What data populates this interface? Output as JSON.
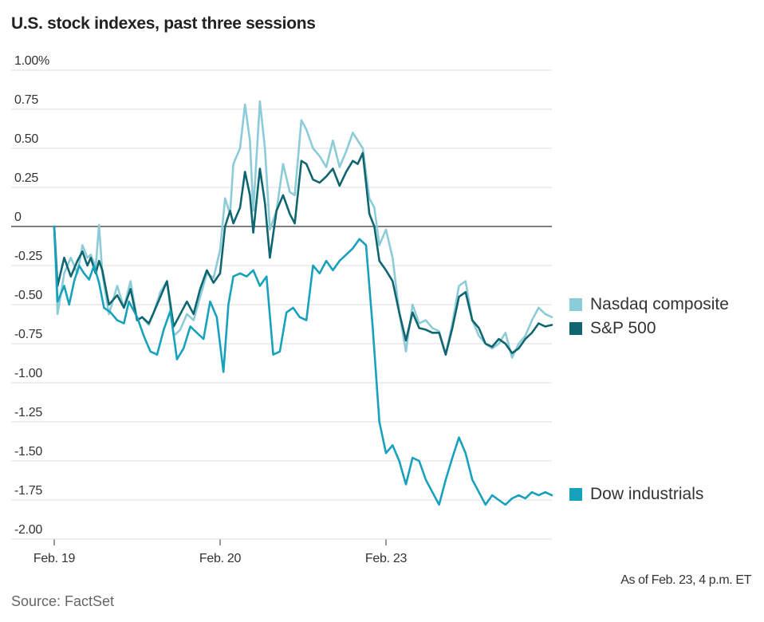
{
  "chart_data": {
    "type": "line",
    "title": "U.S. stock indexes, past three sessions",
    "note": "As of Feb. 23, 4 p.m. ET",
    "source": "Source: FactSet",
    "ylim": [
      -2.0,
      1.0
    ],
    "y_ticks": [
      {
        "value": 1.0,
        "label": "1.00%"
      },
      {
        "value": 0.75,
        "label": "0.75"
      },
      {
        "value": 0.5,
        "label": "0.50"
      },
      {
        "value": 0.25,
        "label": "0.25"
      },
      {
        "value": 0,
        "label": "0"
      },
      {
        "value": -0.25,
        "label": "-0.25"
      },
      {
        "value": -0.5,
        "label": "-0.50"
      },
      {
        "value": -0.75,
        "label": "-0.75"
      },
      {
        "value": -1.0,
        "label": "-1.00"
      },
      {
        "value": -1.25,
        "label": "-1.25"
      },
      {
        "value": -1.5,
        "label": "-1.50"
      },
      {
        "value": -1.75,
        "label": "-1.75"
      },
      {
        "value": -2.0,
        "label": "-2.00"
      }
    ],
    "xlim": [
      0,
      3
    ],
    "x_ticks": [
      {
        "value": 0,
        "label": "Feb. 19"
      },
      {
        "value": 1,
        "label": "Feb. 20"
      },
      {
        "value": 2,
        "label": "Feb. 23"
      }
    ],
    "series": [
      {
        "name": "Nasdaq composite",
        "color": "#8ccbd8",
        "points": [
          [
            0,
            0
          ],
          [
            0.02,
            -0.56
          ],
          [
            0.06,
            -0.3
          ],
          [
            0.1,
            -0.2
          ],
          [
            0.14,
            -0.3
          ],
          [
            0.17,
            -0.12
          ],
          [
            0.2,
            -0.2
          ],
          [
            0.22,
            -0.18
          ],
          [
            0.25,
            -0.26
          ],
          [
            0.27,
            0.01
          ],
          [
            0.29,
            -0.3
          ],
          [
            0.33,
            -0.56
          ],
          [
            0.38,
            -0.38
          ],
          [
            0.42,
            -0.52
          ],
          [
            0.46,
            -0.35
          ],
          [
            0.5,
            -0.6
          ],
          [
            0.53,
            -0.58
          ],
          [
            0.57,
            -0.63
          ],
          [
            0.6,
            -0.55
          ],
          [
            0.64,
            -0.42
          ],
          [
            0.68,
            -0.35
          ],
          [
            0.72,
            -0.7
          ],
          [
            0.76,
            -0.66
          ],
          [
            0.8,
            -0.56
          ],
          [
            0.84,
            -0.6
          ],
          [
            0.88,
            -0.45
          ],
          [
            0.92,
            -0.3
          ],
          [
            0.96,
            -0.33
          ],
          [
            1.0,
            -0.15
          ],
          [
            1.03,
            0.18
          ],
          [
            1.06,
            0.08
          ],
          [
            1.08,
            0.4
          ],
          [
            1.12,
            0.5
          ],
          [
            1.15,
            0.78
          ],
          [
            1.18,
            0.55
          ],
          [
            1.2,
            0.1
          ],
          [
            1.24,
            0.8
          ],
          [
            1.27,
            0.5
          ],
          [
            1.3,
            -0.02
          ],
          [
            1.34,
            0.1
          ],
          [
            1.38,
            0.4
          ],
          [
            1.42,
            0.22
          ],
          [
            1.45,
            0.2
          ],
          [
            1.49,
            0.68
          ],
          [
            1.52,
            0.62
          ],
          [
            1.56,
            0.5
          ],
          [
            1.6,
            0.45
          ],
          [
            1.64,
            0.38
          ],
          [
            1.68,
            0.55
          ],
          [
            1.72,
            0.38
          ],
          [
            1.76,
            0.48
          ],
          [
            1.8,
            0.6
          ],
          [
            1.83,
            0.55
          ],
          [
            1.86,
            0.5
          ],
          [
            1.9,
            0.18
          ],
          [
            1.93,
            0.12
          ],
          [
            1.96,
            -0.12
          ],
          [
            2.0,
            -0.02
          ],
          [
            2.04,
            -0.2
          ],
          [
            2.08,
            -0.55
          ],
          [
            2.12,
            -0.8
          ],
          [
            2.16,
            -0.5
          ],
          [
            2.2,
            -0.62
          ],
          [
            2.24,
            -0.6
          ],
          [
            2.28,
            -0.65
          ],
          [
            2.32,
            -0.67
          ],
          [
            2.36,
            -0.82
          ],
          [
            2.4,
            -0.62
          ],
          [
            2.44,
            -0.38
          ],
          [
            2.48,
            -0.35
          ],
          [
            2.52,
            -0.6
          ],
          [
            2.56,
            -0.7
          ],
          [
            2.6,
            -0.75
          ],
          [
            2.64,
            -0.78
          ],
          [
            2.68,
            -0.75
          ],
          [
            2.72,
            -0.68
          ],
          [
            2.76,
            -0.84
          ],
          [
            2.8,
            -0.75
          ],
          [
            2.84,
            -0.7
          ],
          [
            2.88,
            -0.6
          ],
          [
            2.92,
            -0.52
          ],
          [
            2.96,
            -0.56
          ],
          [
            3.0,
            -0.58
          ]
        ]
      },
      {
        "name": "S&P 500",
        "color": "#0f6570",
        "points": [
          [
            0,
            0
          ],
          [
            0.02,
            -0.38
          ],
          [
            0.06,
            -0.2
          ],
          [
            0.1,
            -0.32
          ],
          [
            0.14,
            -0.22
          ],
          [
            0.17,
            -0.16
          ],
          [
            0.2,
            -0.25
          ],
          [
            0.22,
            -0.2
          ],
          [
            0.25,
            -0.3
          ],
          [
            0.27,
            -0.22
          ],
          [
            0.29,
            -0.28
          ],
          [
            0.33,
            -0.5
          ],
          [
            0.38,
            -0.44
          ],
          [
            0.42,
            -0.52
          ],
          [
            0.46,
            -0.4
          ],
          [
            0.5,
            -0.6
          ],
          [
            0.53,
            -0.58
          ],
          [
            0.57,
            -0.62
          ],
          [
            0.6,
            -0.55
          ],
          [
            0.64,
            -0.45
          ],
          [
            0.68,
            -0.35
          ],
          [
            0.72,
            -0.64
          ],
          [
            0.76,
            -0.56
          ],
          [
            0.8,
            -0.48
          ],
          [
            0.84,
            -0.56
          ],
          [
            0.88,
            -0.4
          ],
          [
            0.92,
            -0.28
          ],
          [
            0.96,
            -0.36
          ],
          [
            1.0,
            -0.3
          ],
          [
            1.03,
            0.0
          ],
          [
            1.06,
            0.1
          ],
          [
            1.08,
            0.02
          ],
          [
            1.12,
            0.12
          ],
          [
            1.15,
            0.35
          ],
          [
            1.18,
            0.2
          ],
          [
            1.2,
            -0.04
          ],
          [
            1.24,
            0.37
          ],
          [
            1.27,
            0.15
          ],
          [
            1.3,
            -0.2
          ],
          [
            1.34,
            0.1
          ],
          [
            1.38,
            0.2
          ],
          [
            1.42,
            0.08
          ],
          [
            1.45,
            0.02
          ],
          [
            1.49,
            0.42
          ],
          [
            1.52,
            0.4
          ],
          [
            1.56,
            0.3
          ],
          [
            1.6,
            0.28
          ],
          [
            1.64,
            0.32
          ],
          [
            1.68,
            0.37
          ],
          [
            1.72,
            0.26
          ],
          [
            1.76,
            0.35
          ],
          [
            1.8,
            0.42
          ],
          [
            1.83,
            0.4
          ],
          [
            1.86,
            0.47
          ],
          [
            1.9,
            0.08
          ],
          [
            1.93,
            0.0
          ],
          [
            1.96,
            -0.22
          ],
          [
            2.0,
            -0.28
          ],
          [
            2.04,
            -0.35
          ],
          [
            2.08,
            -0.55
          ],
          [
            2.12,
            -0.73
          ],
          [
            2.16,
            -0.55
          ],
          [
            2.2,
            -0.65
          ],
          [
            2.24,
            -0.66
          ],
          [
            2.28,
            -0.68
          ],
          [
            2.32,
            -0.68
          ],
          [
            2.36,
            -0.82
          ],
          [
            2.4,
            -0.65
          ],
          [
            2.44,
            -0.45
          ],
          [
            2.48,
            -0.42
          ],
          [
            2.52,
            -0.6
          ],
          [
            2.56,
            -0.65
          ],
          [
            2.6,
            -0.75
          ],
          [
            2.64,
            -0.77
          ],
          [
            2.68,
            -0.72
          ],
          [
            2.72,
            -0.75
          ],
          [
            2.76,
            -0.81
          ],
          [
            2.8,
            -0.78
          ],
          [
            2.84,
            -0.72
          ],
          [
            2.88,
            -0.68
          ],
          [
            2.92,
            -0.62
          ],
          [
            2.96,
            -0.64
          ],
          [
            3.0,
            -0.63
          ]
        ]
      },
      {
        "name": "Dow industrials",
        "color": "#17a1bd",
        "points": [
          [
            0,
            0
          ],
          [
            0.02,
            -0.48
          ],
          [
            0.06,
            -0.38
          ],
          [
            0.09,
            -0.5
          ],
          [
            0.12,
            -0.35
          ],
          [
            0.15,
            -0.25
          ],
          [
            0.18,
            -0.3
          ],
          [
            0.21,
            -0.34
          ],
          [
            0.24,
            -0.25
          ],
          [
            0.27,
            -0.36
          ],
          [
            0.3,
            -0.52
          ],
          [
            0.34,
            -0.55
          ],
          [
            0.38,
            -0.6
          ],
          [
            0.42,
            -0.62
          ],
          [
            0.45,
            -0.48
          ],
          [
            0.5,
            -0.58
          ],
          [
            0.54,
            -0.7
          ],
          [
            0.58,
            -0.8
          ],
          [
            0.62,
            -0.82
          ],
          [
            0.66,
            -0.66
          ],
          [
            0.7,
            -0.54
          ],
          [
            0.74,
            -0.85
          ],
          [
            0.78,
            -0.78
          ],
          [
            0.82,
            -0.64
          ],
          [
            0.86,
            -0.68
          ],
          [
            0.9,
            -0.72
          ],
          [
            0.94,
            -0.48
          ],
          [
            0.98,
            -0.58
          ],
          [
            1.02,
            -0.93
          ],
          [
            1.05,
            -0.5
          ],
          [
            1.08,
            -0.32
          ],
          [
            1.12,
            -0.3
          ],
          [
            1.16,
            -0.32
          ],
          [
            1.2,
            -0.28
          ],
          [
            1.24,
            -0.38
          ],
          [
            1.28,
            -0.32
          ],
          [
            1.32,
            -0.82
          ],
          [
            1.36,
            -0.8
          ],
          [
            1.4,
            -0.55
          ],
          [
            1.44,
            -0.52
          ],
          [
            1.48,
            -0.58
          ],
          [
            1.52,
            -0.6
          ],
          [
            1.56,
            -0.25
          ],
          [
            1.6,
            -0.3
          ],
          [
            1.64,
            -0.22
          ],
          [
            1.68,
            -0.28
          ],
          [
            1.72,
            -0.22
          ],
          [
            1.76,
            -0.18
          ],
          [
            1.8,
            -0.14
          ],
          [
            1.84,
            -0.08
          ],
          [
            1.88,
            -0.12
          ],
          [
            1.92,
            -0.65
          ],
          [
            1.96,
            -1.25
          ],
          [
            2.0,
            -1.45
          ],
          [
            2.04,
            -1.4
          ],
          [
            2.08,
            -1.5
          ],
          [
            2.12,
            -1.65
          ],
          [
            2.16,
            -1.48
          ],
          [
            2.2,
            -1.5
          ],
          [
            2.24,
            -1.62
          ],
          [
            2.28,
            -1.7
          ],
          [
            2.32,
            -1.78
          ],
          [
            2.36,
            -1.62
          ],
          [
            2.4,
            -1.48
          ],
          [
            2.44,
            -1.35
          ],
          [
            2.48,
            -1.45
          ],
          [
            2.52,
            -1.62
          ],
          [
            2.56,
            -1.7
          ],
          [
            2.6,
            -1.78
          ],
          [
            2.64,
            -1.72
          ],
          [
            2.68,
            -1.75
          ],
          [
            2.72,
            -1.78
          ],
          [
            2.76,
            -1.74
          ],
          [
            2.8,
            -1.72
          ],
          [
            2.84,
            -1.74
          ],
          [
            2.88,
            -1.7
          ],
          [
            2.92,
            -1.72
          ],
          [
            2.96,
            -1.7
          ],
          [
            3.0,
            -1.72
          ]
        ]
      }
    ]
  }
}
